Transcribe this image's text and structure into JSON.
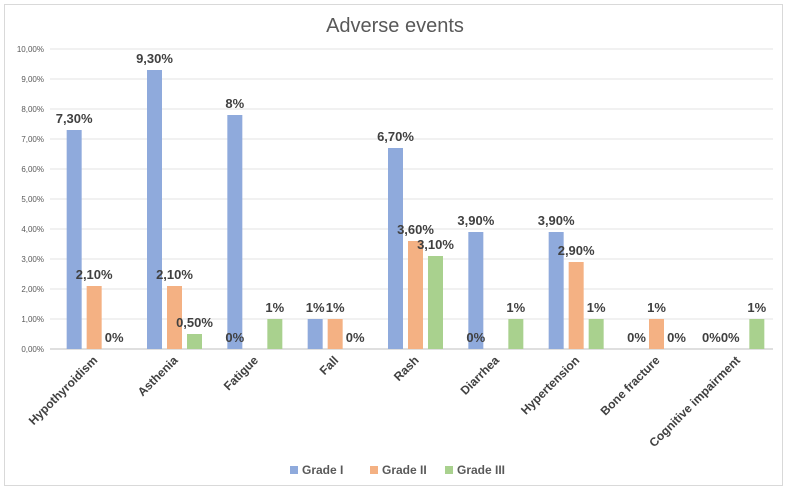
{
  "chart_data": {
    "type": "bar",
    "title": "Adverse events",
    "categories": [
      "Hypothyroidism",
      "Asthenia",
      "Fatigue",
      "Fall",
      "Rash",
      "Diarrhea",
      "Hypertension",
      "Bone fracture",
      "Cognitive impairment"
    ],
    "series": [
      {
        "name": "Grade I",
        "color": "#8faadc",
        "values": [
          7.3,
          9.3,
          7.8,
          1.0,
          6.7,
          3.9,
          3.9,
          0,
          0
        ],
        "labels": [
          "7,30%",
          "9,30%",
          "8%",
          "1%",
          "6,70%",
          "3,90%",
          "3,90%",
          "",
          ""
        ]
      },
      {
        "name": "Grade II",
        "color": "#f4b183",
        "values": [
          2.1,
          2.1,
          0,
          1.0,
          3.6,
          0,
          2.9,
          1.0,
          0
        ],
        "labels": [
          "2,10%",
          "2,10%",
          "",
          "1%",
          "3,60%",
          "",
          "2,90%",
          "1%",
          ""
        ]
      },
      {
        "name": "Grade III",
        "color": "#a9d18e",
        "values": [
          0,
          0.5,
          1.0,
          0,
          3.1,
          1.0,
          1.0,
          0,
          1.0
        ],
        "labels": [
          "0%",
          "0,50%",
          "1%",
          "0%",
          "3,10%",
          "1%",
          "1%",
          "0%",
          "1%"
        ]
      }
    ],
    "zero_labels": [
      "",
      "",
      "0%",
      "",
      "",
      "0%",
      "",
      "0%",
      "0%0%"
    ],
    "ylim": [
      0,
      10
    ],
    "yticks": [
      "0,00%",
      "1,00%",
      "2,00%",
      "3,00%",
      "4,00%",
      "5,00%",
      "6,00%",
      "7,00%",
      "8,00%",
      "9,00%",
      "10,00%"
    ],
    "ylabel": "",
    "xlabel": "",
    "grid": true,
    "legend_position": "bottom"
  }
}
